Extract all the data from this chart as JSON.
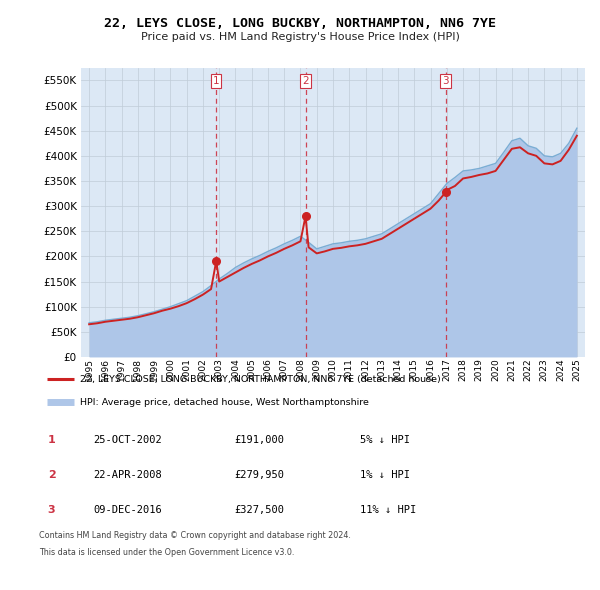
{
  "title": "22, LEYS CLOSE, LONG BUCKBY, NORTHAMPTON, NN6 7YE",
  "subtitle": "Price paid vs. HM Land Registry's House Price Index (HPI)",
  "legend_line1": "22, LEYS CLOSE, LONG BUCKBY, NORTHAMPTON, NN6 7YE (detached house)",
  "legend_line2": "HPI: Average price, detached house, West Northamptonshire",
  "footer1": "Contains HM Land Registry data © Crown copyright and database right 2024.",
  "footer2": "This data is licensed under the Open Government Licence v3.0.",
  "transactions": [
    {
      "num": 1,
      "date": "25-OCT-2002",
      "price": "£191,000",
      "hpi": "5% ↓ HPI"
    },
    {
      "num": 2,
      "date": "22-APR-2008",
      "price": "£279,950",
      "hpi": "1% ↓ HPI"
    },
    {
      "num": 3,
      "date": "09-DEC-2016",
      "price": "£327,500",
      "hpi": "11% ↓ HPI"
    }
  ],
  "sale_years": [
    2002.82,
    2008.31,
    2016.93
  ],
  "sale_prices": [
    191000,
    279950,
    327500
  ],
  "hpi_years": [
    1995,
    1995.5,
    1996,
    1996.5,
    1997,
    1997.5,
    1998,
    1998.5,
    1999,
    1999.5,
    2000,
    2000.5,
    2001,
    2001.5,
    2002,
    2002.5,
    2003,
    2003.5,
    2004,
    2004.5,
    2005,
    2005.5,
    2006,
    2006.5,
    2007,
    2007.5,
    2008,
    2008.5,
    2009,
    2009.5,
    2010,
    2010.5,
    2011,
    2011.5,
    2012,
    2012.5,
    2013,
    2013.5,
    2014,
    2014.5,
    2015,
    2015.5,
    2016,
    2016.5,
    2017,
    2017.5,
    2018,
    2018.5,
    2019,
    2019.5,
    2020,
    2020.5,
    2021,
    2021.5,
    2022,
    2022.5,
    2023,
    2023.5,
    2024,
    2024.5,
    2025
  ],
  "hpi_values": [
    68000,
    70000,
    73000,
    75000,
    77000,
    79000,
    82000,
    86000,
    90000,
    95000,
    100000,
    106000,
    112000,
    121000,
    130000,
    142000,
    155000,
    166000,
    178000,
    187000,
    195000,
    202000,
    210000,
    217000,
    225000,
    232000,
    240000,
    228000,
    215000,
    220000,
    225000,
    227000,
    230000,
    232000,
    235000,
    240000,
    245000,
    255000,
    265000,
    275000,
    285000,
    295000,
    305000,
    325000,
    345000,
    357000,
    370000,
    372000,
    375000,
    380000,
    385000,
    407000,
    430000,
    435000,
    420000,
    415000,
    400000,
    398000,
    405000,
    425000,
    455000
  ],
  "red_line_years": [
    1995,
    1995.5,
    1996,
    1996.5,
    1997,
    1997.5,
    1998,
    1998.5,
    1999,
    1999.5,
    2000,
    2000.5,
    2001,
    2001.5,
    2002,
    2002.5,
    2002.82,
    2003,
    2003.5,
    2004,
    2004.5,
    2005,
    2005.5,
    2006,
    2006.5,
    2007,
    2007.5,
    2008,
    2008.31,
    2008.5,
    2009,
    2009.5,
    2010,
    2010.5,
    2011,
    2011.5,
    2012,
    2012.5,
    2013,
    2013.5,
    2014,
    2014.5,
    2015,
    2015.5,
    2016,
    2016.5,
    2016.93,
    2017,
    2017.5,
    2018,
    2018.5,
    2019,
    2019.5,
    2020,
    2020.5,
    2021,
    2021.5,
    2022,
    2022.5,
    2023,
    2023.5,
    2024,
    2024.5,
    2025
  ],
  "red_line_values": [
    65000,
    67000,
    70000,
    72000,
    74000,
    76000,
    79000,
    83000,
    87000,
    92000,
    96000,
    101000,
    107000,
    115000,
    124000,
    135000,
    191000,
    150000,
    159000,
    168000,
    177000,
    185000,
    192000,
    200000,
    207000,
    215000,
    222000,
    230000,
    279950,
    218000,
    206000,
    210000,
    215000,
    217000,
    220000,
    222000,
    225000,
    230000,
    235000,
    245000,
    255000,
    265000,
    275000,
    285000,
    295000,
    311000,
    327500,
    332000,
    340000,
    355000,
    358000,
    362000,
    365000,
    370000,
    392000,
    414000,
    417000,
    405000,
    400000,
    385000,
    383000,
    390000,
    412000,
    440000
  ],
  "ylim": [
    0,
    575000
  ],
  "xlim": [
    1994.5,
    2025.5
  ],
  "yticks": [
    0,
    50000,
    100000,
    150000,
    200000,
    250000,
    300000,
    350000,
    400000,
    450000,
    500000,
    550000
  ],
  "xticks": [
    1995,
    1996,
    1997,
    1998,
    1999,
    2000,
    2001,
    2002,
    2003,
    2004,
    2005,
    2006,
    2007,
    2008,
    2009,
    2010,
    2011,
    2012,
    2013,
    2014,
    2015,
    2016,
    2017,
    2018,
    2019,
    2020,
    2021,
    2022,
    2023,
    2024,
    2025
  ],
  "vline_years": [
    2002.82,
    2008.31,
    2016.93
  ],
  "hpi_color": "#aec6e8",
  "hpi_line_color": "#7aadd4",
  "red_color": "#cc2222",
  "vline_color": "#cc3344",
  "bg_color": "#dce8f5",
  "grid_color": "#c0ccd8"
}
